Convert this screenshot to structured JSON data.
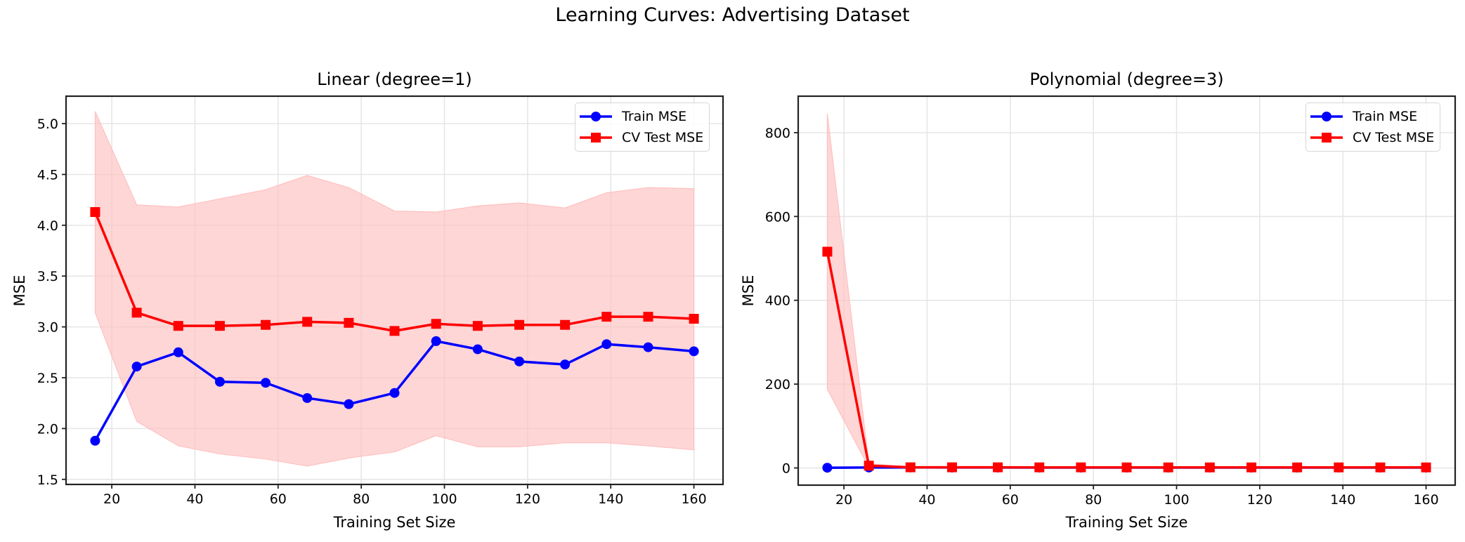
{
  "figure": {
    "suptitle": "Learning Curves: Advertising Dataset",
    "colors": {
      "train": "#0000ff",
      "cv": "#ff0000",
      "band": "#ffc0c0",
      "grid": "#e5e5e5",
      "axis": "#222222"
    }
  },
  "chart_data": [
    {
      "type": "line",
      "title": "Linear (degree=1)",
      "xlabel": "Training Set Size",
      "ylabel": "MSE",
      "xlim": [
        9,
        167
      ],
      "ylim": [
        1.45,
        5.27
      ],
      "xticks": [
        20,
        40,
        60,
        80,
        100,
        120,
        140,
        160
      ],
      "yticks": [
        1.5,
        2.0,
        2.5,
        3.0,
        3.5,
        4.0,
        4.5,
        5.0
      ],
      "ytick_labels": [
        "1.5",
        "2.0",
        "2.5",
        "3.0",
        "3.5",
        "4.0",
        "4.5",
        "5.0"
      ],
      "grid": true,
      "legend_position": "upper right",
      "x": [
        16,
        26,
        36,
        46,
        57,
        67,
        77,
        88,
        98,
        108,
        118,
        129,
        139,
        149,
        160
      ],
      "series": [
        {
          "name": "Train MSE",
          "marker": "circle",
          "color": "#0000ff",
          "values": [
            1.88,
            2.61,
            2.75,
            2.46,
            2.45,
            2.3,
            2.24,
            2.35,
            2.86,
            2.78,
            2.66,
            2.63,
            2.83,
            2.8,
            2.76
          ]
        },
        {
          "name": "CV Test MSE",
          "marker": "square",
          "color": "#ff0000",
          "values": [
            4.13,
            3.14,
            3.01,
            3.01,
            3.02,
            3.05,
            3.04,
            2.96,
            3.03,
            3.01,
            3.02,
            3.02,
            3.1,
            3.1,
            3.08
          ],
          "band_upper": [
            5.12,
            4.2,
            4.18,
            4.26,
            4.35,
            4.49,
            4.37,
            4.14,
            4.13,
            4.19,
            4.22,
            4.17,
            4.32,
            4.37,
            4.36
          ],
          "band_lower": [
            3.14,
            2.07,
            1.83,
            1.75,
            1.7,
            1.63,
            1.71,
            1.77,
            1.93,
            1.82,
            1.82,
            1.86,
            1.86,
            1.83,
            1.79
          ]
        }
      ]
    },
    {
      "type": "line",
      "title": "Polynomial (degree=3)",
      "xlabel": "Training Set Size",
      "ylabel": "MSE",
      "xlim": [
        9,
        167
      ],
      "ylim": [
        -41,
        887
      ],
      "xticks": [
        20,
        40,
        60,
        80,
        100,
        120,
        140,
        160
      ],
      "yticks": [
        0,
        200,
        400,
        600,
        800
      ],
      "ytick_labels": [
        "0",
        "200",
        "400",
        "600",
        "800"
      ],
      "grid": true,
      "legend_position": "upper right",
      "x": [
        16,
        26,
        36,
        46,
        57,
        67,
        77,
        88,
        98,
        108,
        118,
        129,
        139,
        149,
        160
      ],
      "series": [
        {
          "name": "Train MSE",
          "marker": "circle",
          "color": "#0000ff",
          "values": [
            0.5,
            1.0,
            1.2,
            1.0,
            1.0,
            0.9,
            0.9,
            0.9,
            0.9,
            0.9,
            0.9,
            0.9,
            0.9,
            0.9,
            0.9
          ]
        },
        {
          "name": "CV Test MSE",
          "marker": "square",
          "color": "#ff0000",
          "values": [
            516,
            5.5,
            1.5,
            1.5,
            1.5,
            1.4,
            1.4,
            1.3,
            1.3,
            1.3,
            1.3,
            1.3,
            1.3,
            1.3,
            1.3
          ],
          "band_upper": [
            845,
            10,
            2.5,
            2.5,
            2.5,
            2.3,
            2.3,
            2.1,
            2.1,
            2.1,
            2.1,
            2.1,
            2.1,
            2.1,
            2.1
          ],
          "band_lower": [
            188,
            1.0,
            0.5,
            0.5,
            0.5,
            0.5,
            0.5,
            0.5,
            0.5,
            0.5,
            0.5,
            0.5,
            0.5,
            0.5,
            0.5
          ]
        }
      ]
    }
  ]
}
